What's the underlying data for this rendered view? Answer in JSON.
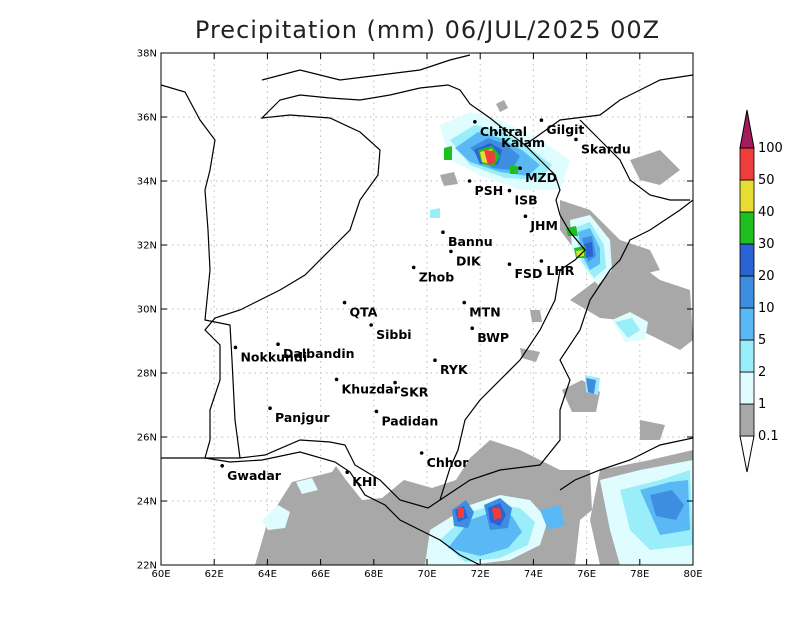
{
  "title": "Precipitation (mm) 06/JUL/2025 00Z",
  "axes": {
    "x_ticks": [
      "60E",
      "62E",
      "64E",
      "66E",
      "68E",
      "70E",
      "72E",
      "74E",
      "76E",
      "78E",
      "80E"
    ],
    "y_ticks": [
      "22N",
      "24N",
      "26N",
      "28N",
      "30N",
      "32N",
      "34N",
      "36N",
      "38N"
    ],
    "lon_range": [
      60,
      80
    ],
    "lat_range": [
      22,
      38
    ],
    "grid": true
  },
  "colorbar": {
    "labels": [
      "0.1",
      "1",
      "2",
      "5",
      "10",
      "20",
      "30",
      "40",
      "50",
      "100"
    ],
    "colors": [
      "#a8a8a8",
      "#dffcff",
      "#9aeefa",
      "#5ab9f5",
      "#3d8ee0",
      "#2b62d4",
      "#1fbf1f",
      "#e6dc32",
      "#ef3c3c",
      "#a51a5e"
    ]
  },
  "cities": [
    {
      "name": "Chitral",
      "lon": 71.8,
      "lat": 35.85
    },
    {
      "name": "Gilgit",
      "lon": 74.3,
      "lat": 35.9
    },
    {
      "name": "Kalam",
      "lon": 72.6,
      "lat": 35.5
    },
    {
      "name": "Skardu",
      "lon": 75.6,
      "lat": 35.3
    },
    {
      "name": "MZD",
      "lon": 73.5,
      "lat": 34.4
    },
    {
      "name": "PSH",
      "lon": 71.6,
      "lat": 34.0
    },
    {
      "name": "ISB",
      "lon": 73.1,
      "lat": 33.7
    },
    {
      "name": "JHM",
      "lon": 73.7,
      "lat": 32.9
    },
    {
      "name": "Bannu",
      "lon": 70.6,
      "lat": 32.4
    },
    {
      "name": "DIK",
      "lon": 70.9,
      "lat": 31.8
    },
    {
      "name": "FSD",
      "lon": 73.1,
      "lat": 31.4
    },
    {
      "name": "LHR",
      "lon": 74.3,
      "lat": 31.5
    },
    {
      "name": "Zhob",
      "lon": 69.5,
      "lat": 31.3
    },
    {
      "name": "QTA",
      "lon": 66.9,
      "lat": 30.2
    },
    {
      "name": "MTN",
      "lon": 71.4,
      "lat": 30.2
    },
    {
      "name": "Sibbi",
      "lon": 67.9,
      "lat": 29.5
    },
    {
      "name": "BWP",
      "lon": 71.7,
      "lat": 29.4
    },
    {
      "name": "Nokkundi",
      "lon": 62.8,
      "lat": 28.8
    },
    {
      "name": "Dalbandin",
      "lon": 64.4,
      "lat": 28.9
    },
    {
      "name": "RYK",
      "lon": 70.3,
      "lat": 28.4
    },
    {
      "name": "Khuzdar",
      "lon": 66.6,
      "lat": 27.8
    },
    {
      "name": "SKR",
      "lon": 68.8,
      "lat": 27.7
    },
    {
      "name": "Panjgur",
      "lon": 64.1,
      "lat": 26.9
    },
    {
      "name": "Padidan",
      "lon": 68.1,
      "lat": 26.8
    },
    {
      "name": "Chhor",
      "lon": 69.8,
      "lat": 25.5
    },
    {
      "name": "Gwadar",
      "lon": 62.3,
      "lat": 25.1
    },
    {
      "name": "KHI",
      "lon": 67.0,
      "lat": 24.9
    }
  ]
}
